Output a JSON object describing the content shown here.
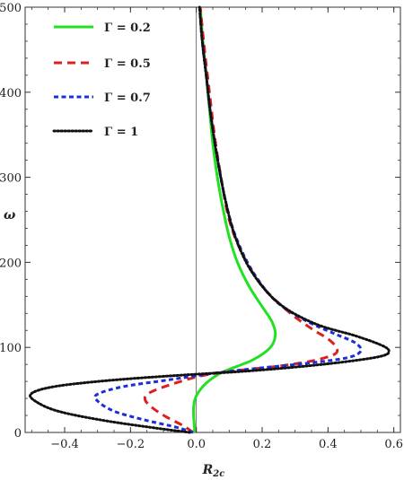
{
  "chart_data": {
    "type": "line",
    "xlabel": "R",
    "xlabel_sub": "2c",
    "ylabel": "ω",
    "xlim": [
      -0.52,
      0.62
    ],
    "ylim": [
      0,
      500
    ],
    "xticks": [
      -0.4,
      -0.2,
      0.0,
      0.2,
      0.4,
      0.6
    ],
    "xtick_labels": [
      "−0.4",
      "−0.2",
      "0.0",
      "0.2",
      "0.4",
      "0.6"
    ],
    "yticks": [
      0,
      100,
      200,
      300,
      400,
      500
    ],
    "ytick_labels": [
      "0",
      "100",
      "200",
      "300",
      "400",
      "500"
    ],
    "grid": false,
    "legend_position": "top-left",
    "series": [
      {
        "name": "Γ = 0.2",
        "color": "#22e022",
        "dash": "solid",
        "points": [
          [
            -0.005,
            0
          ],
          [
            -0.006,
            8
          ],
          [
            -0.008,
            18
          ],
          [
            -0.008,
            30
          ],
          [
            0.0,
            43
          ],
          [
            0.03,
            58
          ],
          [
            0.08,
            71
          ],
          [
            0.17,
            85
          ],
          [
            0.225,
            100
          ],
          [
            0.24,
            115
          ],
          [
            0.23,
            130
          ],
          [
            0.2,
            148
          ],
          [
            0.16,
            172
          ],
          [
            0.125,
            200
          ],
          [
            0.1,
            230
          ],
          [
            0.08,
            265
          ],
          [
            0.064,
            300
          ],
          [
            0.05,
            340
          ],
          [
            0.04,
            380
          ],
          [
            0.03,
            420
          ],
          [
            0.02,
            460
          ],
          [
            0.012,
            500
          ]
        ]
      },
      {
        "name": "Γ = 0.5",
        "color": "#dd1f1f",
        "dash": "dashed",
        "points": [
          [
            -0.01,
            0
          ],
          [
            -0.04,
            8
          ],
          [
            -0.09,
            18
          ],
          [
            -0.13,
            28
          ],
          [
            -0.155,
            38
          ],
          [
            -0.145,
            46
          ],
          [
            -0.08,
            56
          ],
          [
            0.02,
            67
          ],
          [
            0.13,
            73
          ],
          [
            0.25,
            78
          ],
          [
            0.35,
            84
          ],
          [
            0.42,
            92
          ],
          [
            0.425,
            100
          ],
          [
            0.4,
            110
          ],
          [
            0.35,
            122
          ],
          [
            0.28,
            142
          ],
          [
            0.2,
            172
          ],
          [
            0.14,
            210
          ],
          [
            0.1,
            250
          ],
          [
            0.075,
            300
          ],
          [
            0.055,
            350
          ],
          [
            0.04,
            400
          ],
          [
            0.025,
            450
          ],
          [
            0.012,
            500
          ]
        ]
      },
      {
        "name": "Γ = 0.7",
        "color": "#1c2fd6",
        "dash": "dashed",
        "points": [
          [
            -0.01,
            0
          ],
          [
            -0.06,
            6
          ],
          [
            -0.16,
            15
          ],
          [
            -0.25,
            25
          ],
          [
            -0.3,
            37
          ],
          [
            -0.3,
            45
          ],
          [
            -0.22,
            54
          ],
          [
            -0.08,
            62
          ],
          [
            0.06,
            70
          ],
          [
            0.2,
            76
          ],
          [
            0.35,
            82
          ],
          [
            0.46,
            88
          ],
          [
            0.5,
            96
          ],
          [
            0.48,
            106
          ],
          [
            0.42,
            116
          ],
          [
            0.33,
            132
          ],
          [
            0.24,
            155
          ],
          [
            0.17,
            190
          ],
          [
            0.12,
            230
          ],
          [
            0.09,
            270
          ],
          [
            0.065,
            320
          ],
          [
            0.045,
            370
          ],
          [
            0.03,
            420
          ],
          [
            0.018,
            460
          ],
          [
            0.01,
            500
          ]
        ]
      },
      {
        "name": "Γ = 1",
        "color": "#111111",
        "dash": "dotted",
        "points": [
          [
            -0.02,
            0
          ],
          [
            -0.12,
            5
          ],
          [
            -0.28,
            14
          ],
          [
            -0.42,
            25
          ],
          [
            -0.49,
            37
          ],
          [
            -0.5,
            46
          ],
          [
            -0.43,
            54
          ],
          [
            -0.27,
            61
          ],
          [
            -0.06,
            67
          ],
          [
            0.15,
            72
          ],
          [
            0.33,
            78
          ],
          [
            0.47,
            84
          ],
          [
            0.565,
            90
          ],
          [
            0.585,
            96
          ],
          [
            0.56,
            103
          ],
          [
            0.48,
            114
          ],
          [
            0.36,
            128
          ],
          [
            0.25,
            152
          ],
          [
            0.17,
            188
          ],
          [
            0.12,
            228
          ],
          [
            0.09,
            270
          ],
          [
            0.065,
            320
          ],
          [
            0.045,
            370
          ],
          [
            0.03,
            420
          ],
          [
            0.018,
            460
          ],
          [
            0.01,
            500
          ]
        ]
      }
    ]
  }
}
